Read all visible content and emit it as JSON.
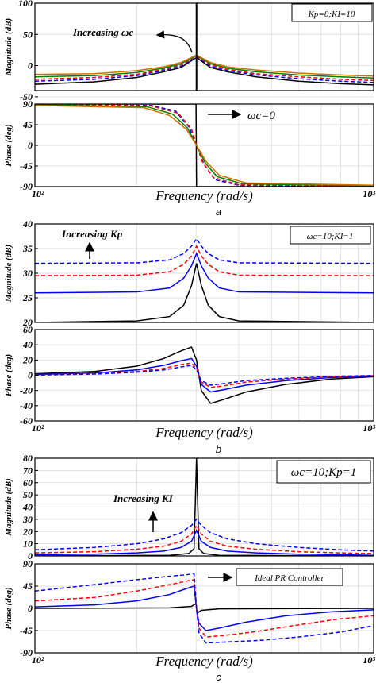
{
  "chart_data": [
    {
      "type": "line",
      "panel": "a",
      "title": "",
      "xlabel": "Frequency (rad/s)",
      "x_ticks": [
        "10²",
        "10³"
      ],
      "xscale": "log",
      "xlim": [
        100,
        1000
      ],
      "magnitude": {
        "ylabel": "Magnitude (dB)",
        "ylim": [
          -40,
          100
        ],
        "yticks": [
          100,
          50,
          0,
          -50
        ],
        "series": [
          {
            "color": "#000000",
            "dash": "solid",
            "x": [
              100,
              150,
              200,
              240,
              270,
              300,
              330,
              370,
              450,
              600,
              800,
              1000
            ],
            "y": [
              -30,
              -26,
              -19,
              -10,
              -3,
              13,
              -3,
              -10,
              -18,
              -25,
              -29,
              -31
            ]
          },
          {
            "color": "#0000ff",
            "dash": "dashed",
            "x": [
              100,
              150,
              200,
              240,
              270,
              300,
              330,
              370,
              450,
              600,
              800,
              1000
            ],
            "y": [
              -25,
              -22,
              -16,
              -8,
              -1,
              14,
              -1,
              -8,
              -15,
              -21,
              -25,
              -27
            ]
          },
          {
            "color": "#ff0000",
            "dash": "dashed",
            "x": [
              100,
              150,
              200,
              240,
              270,
              300,
              330,
              370,
              450,
              600,
              800,
              1000
            ],
            "y": [
              -22,
              -19,
              -14,
              -6,
              1,
              15,
              1,
              -6,
              -13,
              -18,
              -22,
              -24
            ]
          },
          {
            "color": "#008000",
            "dash": "solid",
            "x": [
              100,
              150,
              200,
              240,
              270,
              300,
              330,
              370,
              450,
              600,
              800,
              1000
            ],
            "y": [
              -18,
              -16,
              -11,
              -4,
              3,
              16,
              3,
              -4,
              -10,
              -15,
              -18,
              -20
            ]
          },
          {
            "color": "#d07000",
            "dash": "solid",
            "x": [
              100,
              150,
              200,
              240,
              270,
              300,
              330,
              370,
              450,
              600,
              800,
              1000
            ],
            "y": [
              -14,
              -13,
              -8,
              -2,
              5,
              17,
              5,
              -2,
              -7,
              -12,
              -15,
              -17
            ]
          }
        ],
        "spike": {
          "x": 300,
          "color": "#000000"
        }
      },
      "phase": {
        "ylabel": "Phase (deg)",
        "ylim": [
          -90,
          90
        ],
        "yticks": [
          90,
          45,
          0,
          -45,
          -90
        ],
        "series": [
          {
            "color": "#000000",
            "dash": "solid",
            "x": [
              100,
              299,
              300,
              1000
            ],
            "y": [
              90,
              90,
              -90,
              -90
            ]
          },
          {
            "color": "#0000ff",
            "dash": "dashed",
            "x": [
              100,
              220,
              260,
              285,
              300,
              315,
              340,
              400,
              1000
            ],
            "y": [
              89,
              87,
              75,
              40,
              0,
              -40,
              -75,
              -87,
              -89
            ]
          },
          {
            "color": "#ff0000",
            "dash": "dashed",
            "x": [
              100,
              220,
              265,
              290,
              300,
              312,
              336,
              400,
              1000
            ],
            "y": [
              89,
              86,
              70,
              35,
              0,
              -35,
              -70,
              -86,
              -89
            ]
          },
          {
            "color": "#008000",
            "dash": "solid",
            "x": [
              100,
              215,
              255,
              282,
              300,
              318,
              345,
              410,
              1000
            ],
            "y": [
              88,
              84,
              68,
              38,
              0,
              -38,
              -68,
              -84,
              -88
            ]
          },
          {
            "color": "#d07000",
            "dash": "solid",
            "x": [
              100,
              210,
              250,
              280,
              300,
              320,
              350,
              420,
              1000
            ],
            "y": [
              87,
              82,
              65,
              35,
              0,
              -35,
              -65,
              -82,
              -87
            ]
          }
        ]
      },
      "annotations": {
        "increasing": "Increasing ωc",
        "params": "Kp=0;KI=10",
        "wc_zero": "ωc=0"
      },
      "label": "a"
    },
    {
      "type": "line",
      "panel": "b",
      "title": "",
      "xlabel": "Frequency (rad/s)",
      "x_ticks": [
        "10²",
        "10³"
      ],
      "xscale": "log",
      "xlim": [
        100,
        1000
      ],
      "magnitude": {
        "ylabel": "Magnitude (dB)",
        "ylim": [
          20,
          40
        ],
        "yticks": [
          40,
          35,
          30,
          25,
          20
        ],
        "series": [
          {
            "color": "#000000",
            "dash": "solid",
            "x": [
              100,
              200,
              250,
              275,
              290,
              300,
              310,
              325,
              350,
              400,
              1000
            ],
            "y": [
              20,
              20.3,
              21.2,
              23.5,
              27.5,
              32,
              27.5,
              23.5,
              21.2,
              20.3,
              20
            ]
          },
          {
            "color": "#0000ff",
            "dash": "solid",
            "x": [
              100,
              200,
              250,
              275,
              290,
              300,
              310,
              325,
              350,
              400,
              1000
            ],
            "y": [
              26,
              26.2,
              27,
              29,
              31.5,
              34,
              31.5,
              29,
              27,
              26.2,
              26
            ]
          },
          {
            "color": "#ff0000",
            "dash": "dashed",
            "x": [
              100,
              200,
              250,
              275,
              290,
              300,
              310,
              325,
              350,
              400,
              1000
            ],
            "y": [
              29.5,
              29.6,
              30.3,
              31.8,
              33.5,
              35.5,
              33.5,
              31.8,
              30.3,
              29.6,
              29.5
            ]
          },
          {
            "color": "#0000ff",
            "dash": "dashed",
            "x": [
              100,
              200,
              250,
              275,
              290,
              300,
              310,
              325,
              350,
              400,
              1000
            ],
            "y": [
              32,
              32.1,
              32.7,
              34,
              35.5,
              37,
              35.5,
              34,
              32.7,
              32.1,
              32
            ]
          }
        ]
      },
      "phase": {
        "ylabel": "Phase (deg)",
        "ylim": [
          -60,
          60
        ],
        "yticks": [
          60,
          40,
          20,
          0,
          -20,
          -40,
          -60
        ],
        "series": [
          {
            "color": "#000000",
            "dash": "solid",
            "x": [
              100,
              150,
              200,
              240,
              270,
              290,
              300,
              310,
              330,
              360,
              420,
              550,
              750,
              1000
            ],
            "y": [
              2,
              5,
              12,
              22,
              32,
              37,
              20,
              -20,
              -37,
              -32,
              -22,
              -12,
              -5,
              -2
            ]
          },
          {
            "color": "#0000ff",
            "dash": "solid",
            "x": [
              100,
              150,
              200,
              240,
              270,
              290,
              300,
              310,
              330,
              360,
              420,
              550,
              750,
              1000
            ],
            "y": [
              1,
              3,
              7,
              13,
              19,
              22,
              12,
              -12,
              -22,
              -19,
              -13,
              -7,
              -3,
              -1
            ]
          },
          {
            "color": "#ff0000",
            "dash": "dashed",
            "x": [
              100,
              150,
              200,
              240,
              270,
              290,
              300,
              310,
              330,
              360,
              420,
              550,
              750,
              1000
            ],
            "y": [
              0.5,
              2,
              5,
              9,
              14,
              16,
              9,
              -9,
              -16,
              -14,
              -9,
              -5,
              -2,
              -0.5
            ]
          },
          {
            "color": "#0000ff",
            "dash": "dashed",
            "x": [
              100,
              150,
              200,
              240,
              270,
              290,
              300,
              310,
              330,
              360,
              420,
              550,
              750,
              1000
            ],
            "y": [
              0.3,
              1.5,
              4,
              7,
              11,
              13,
              7,
              -7,
              -13,
              -11,
              -7,
              -4,
              -1.5,
              -0.3
            ]
          }
        ]
      },
      "annotations": {
        "increasing": "Increasing Kp",
        "params": "ωc=10;KI=1"
      },
      "label": "b"
    },
    {
      "type": "line",
      "panel": "c",
      "title": "",
      "xlabel": "Frequency (rad/s)",
      "x_ticks": [
        "10²",
        "10³"
      ],
      "xscale": "log",
      "xlim": [
        100,
        1000
      ],
      "magnitude": {
        "ylabel": "Magnitude (dB)",
        "ylim": [
          0,
          80
        ],
        "yticks": [
          80,
          70,
          60,
          50,
          40,
          30,
          20,
          10,
          0
        ],
        "series": [
          {
            "color": "#000000",
            "dash": "solid",
            "x": [
              100,
              250,
              285,
              295,
              300,
              305,
              315,
              350,
              1000
            ],
            "y": [
              0,
              0.5,
              2,
              6,
              80,
              6,
              2,
              0.5,
              0
            ]
          },
          {
            "color": "#0000ff",
            "dash": "solid",
            "x": [
              100,
              150,
              200,
              240,
              270,
              290,
              300,
              310,
              330,
              370,
              450,
              600,
              800,
              1000
            ],
            "y": [
              1,
              1.5,
              2.5,
              4,
              7,
              12,
              21,
              12,
              7,
              4,
              2.5,
              1.5,
              1,
              0.5
            ]
          },
          {
            "color": "#ff0000",
            "dash": "dashed",
            "x": [
              100,
              150,
              200,
              240,
              270,
              290,
              300,
              310,
              330,
              370,
              450,
              600,
              800,
              1000
            ],
            "y": [
              2.5,
              3.5,
              5.5,
              8,
              12,
              18,
              25,
              18,
              12,
              8,
              5.5,
              3.5,
              2.5,
              2
            ]
          },
          {
            "color": "#0000ff",
            "dash": "dashed",
            "x": [
              100,
              150,
              200,
              240,
              270,
              290,
              300,
              310,
              330,
              370,
              450,
              600,
              800,
              1000
            ],
            "y": [
              5,
              7,
              10,
              14,
              19,
              25,
              30,
              25,
              19,
              14,
              10,
              7,
              5,
              4
            ]
          }
        ]
      },
      "phase": {
        "ylabel": "Phase (deg)",
        "ylim": [
          -90,
          90
        ],
        "yticks": [
          90,
          45,
          0,
          -45,
          -90
        ],
        "series": [
          {
            "color": "#000000",
            "dash": "solid",
            "x": [
              100,
              250,
              290,
              299,
              300,
              301,
              310,
              350,
              1000
            ],
            "y": [
              0,
              1,
              4,
              10,
              0,
              -10,
              -4,
              -1,
              0
            ]
          },
          {
            "color": "#0000ff",
            "dash": "solid",
            "x": [
              100,
              150,
              200,
              250,
              280,
              295,
              300,
              305,
              320,
              350,
              420,
              550,
              750,
              1000
            ],
            "y": [
              3,
              7,
              15,
              28,
              40,
              45,
              0,
              -30,
              -45,
              -40,
              -28,
              -15,
              -7,
              -3
            ]
          },
          {
            "color": "#ff0000",
            "dash": "dashed",
            "x": [
              100,
              150,
              200,
              250,
              280,
              295,
              300,
              305,
              320,
              360,
              440,
              580,
              780,
              1000
            ],
            "y": [
              15,
              22,
              35,
              48,
              55,
              58,
              0,
              -40,
              -58,
              -55,
              -48,
              -35,
              -22,
              -15
            ]
          },
          {
            "color": "#0000ff",
            "dash": "dashed",
            "x": [
              100,
              150,
              200,
              250,
              280,
              295,
              300,
              305,
              320,
              370,
              460,
              600,
              800,
              1000
            ],
            "y": [
              35,
              48,
              58,
              65,
              68,
              70,
              0,
              -50,
              -70,
              -68,
              -65,
              -58,
              -48,
              -35
            ]
          }
        ]
      },
      "annotations": {
        "increasing": "Increasing KI",
        "params": "ωc=10;Kp=1",
        "ideal": "Ideal PR Controller"
      },
      "label": "c"
    }
  ]
}
